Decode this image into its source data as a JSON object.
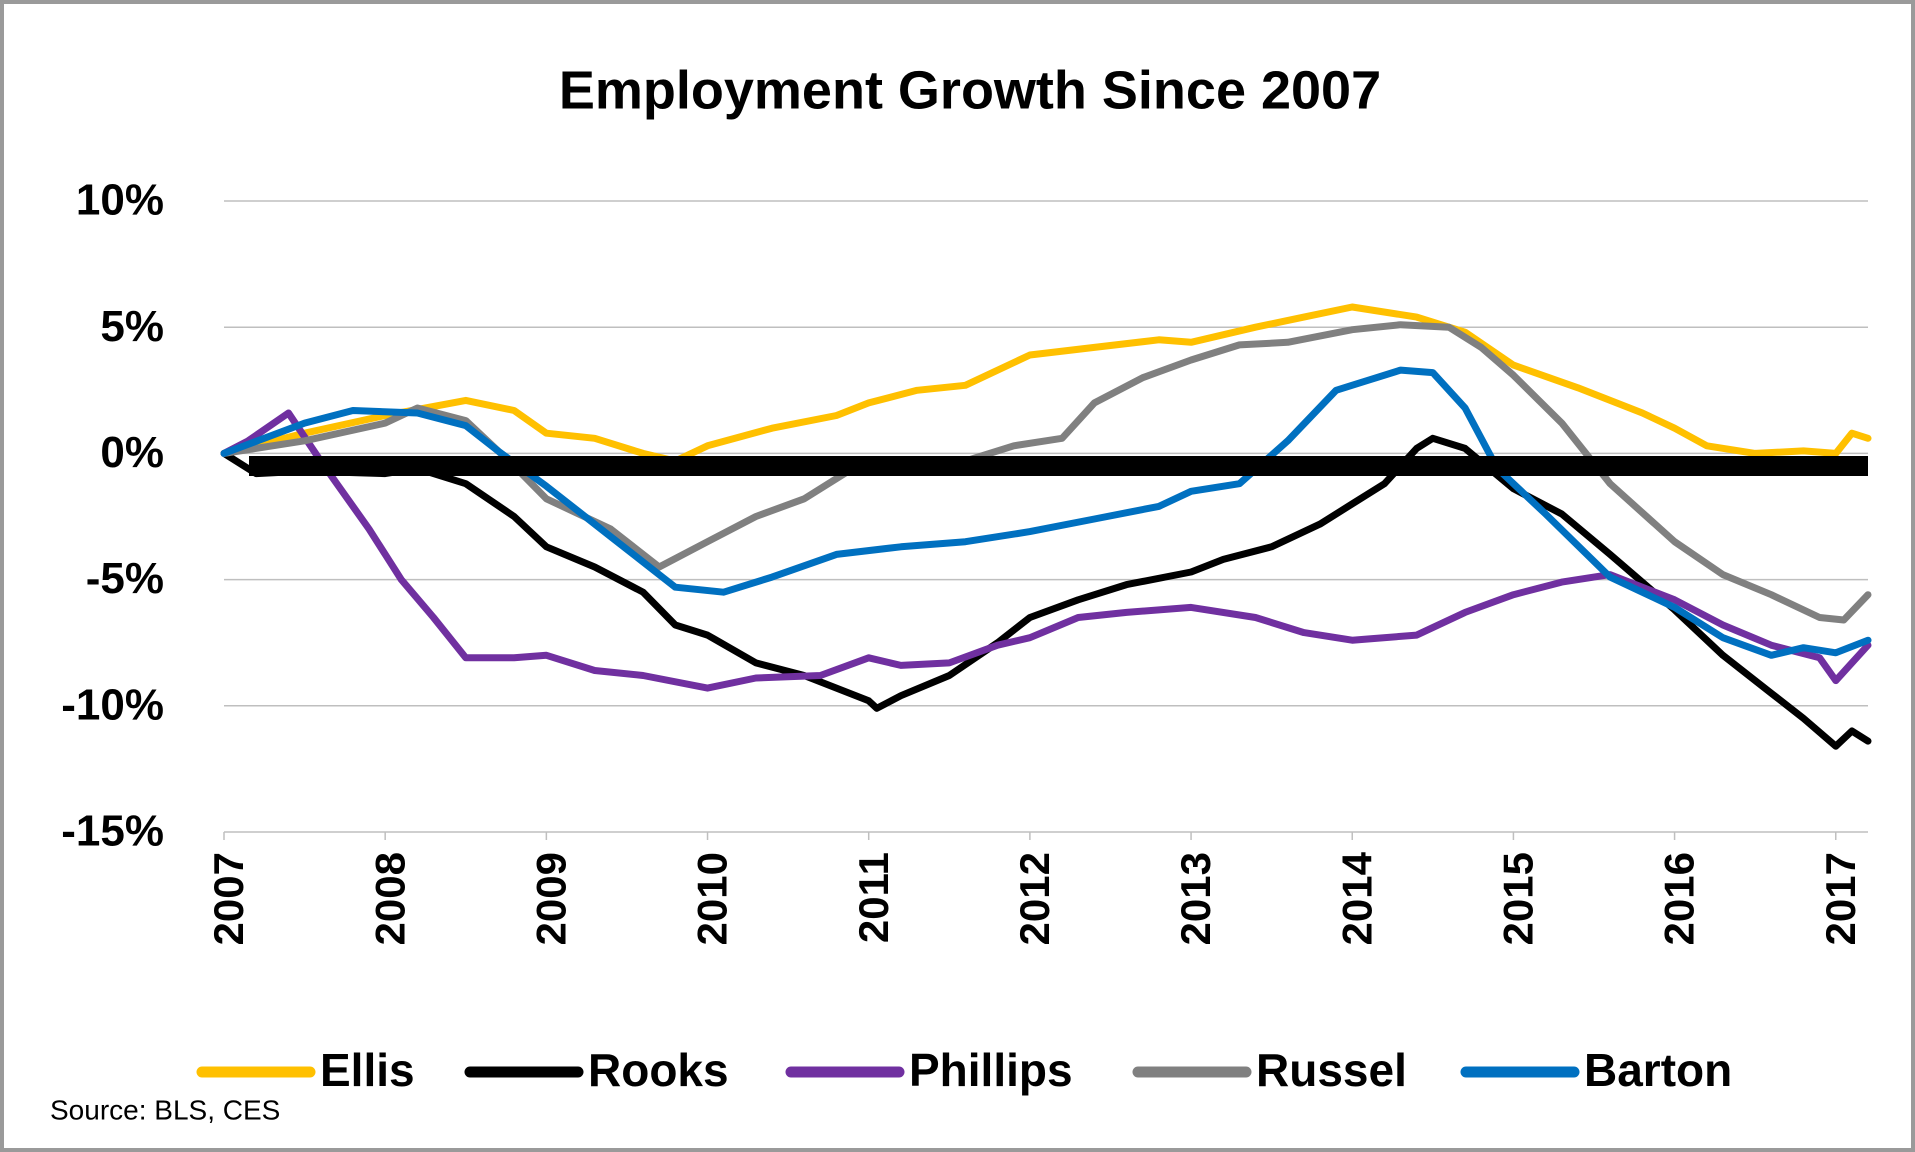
{
  "chart_data": {
    "type": "line",
    "title": "Employment Growth Since 2007",
    "source": "Source: BLS, CES",
    "xlim": [
      2007,
      2017.2
    ],
    "xticks": [
      2007,
      2008,
      2009,
      2010,
      2011,
      2012,
      2013,
      2014,
      2015,
      2016,
      2017
    ],
    "ylim": [
      -15,
      10
    ],
    "yticks": [
      {
        "value": 10,
        "label": "10%"
      },
      {
        "value": 5,
        "label": "5%"
      },
      {
        "value": 0,
        "label": "0%"
      },
      {
        "value": -5,
        "label": "-5%"
      },
      {
        "value": -10,
        "label": "-10%"
      },
      {
        "value": -15,
        "label": "-15%"
      }
    ],
    "grid": true,
    "legend": "bottom",
    "hline": {
      "value": -0.5,
      "color": "#000000"
    },
    "series": [
      {
        "name": "Ellis",
        "color": "#ffc000",
        "x": [
          2007,
          2007.5,
          2008,
          2008.5,
          2008.8,
          2009,
          2009.3,
          2009.6,
          2009.8,
          2010,
          2010.4,
          2010.8,
          2011,
          2011.3,
          2011.6,
          2012,
          2012.4,
          2012.8,
          2013,
          2013.4,
          2013.7,
          2014,
          2014.4,
          2014.7,
          2015,
          2015.4,
          2015.8,
          2016,
          2016.2,
          2016.5,
          2016.8,
          2017,
          2017.1,
          2017.2
        ],
        "values": [
          0,
          0.8,
          1.5,
          2.1,
          1.7,
          0.8,
          0.6,
          0,
          -0.3,
          0.3,
          1.0,
          1.5,
          2.0,
          2.5,
          2.7,
          3.9,
          4.2,
          4.5,
          4.4,
          5.0,
          5.4,
          5.8,
          5.4,
          4.8,
          3.5,
          2.6,
          1.6,
          1.0,
          0.3,
          0,
          0.1,
          0,
          0.8,
          0.6
        ]
      },
      {
        "name": "Rooks",
        "color": "#000000",
        "x": [
          2007,
          2007.2,
          2007.5,
          2008,
          2008.2,
          2008.5,
          2008.8,
          2009,
          2009.3,
          2009.6,
          2009.8,
          2010,
          2010.3,
          2010.6,
          2011,
          2011.05,
          2011.2,
          2011.5,
          2011.8,
          2012,
          2012.3,
          2012.6,
          2013,
          2013.2,
          2013.5,
          2013.8,
          2014,
          2014.2,
          2014.4,
          2014.5,
          2014.7,
          2015,
          2015.3,
          2015.6,
          2016,
          2016.3,
          2016.6,
          2016.8,
          2017,
          2017.1,
          2017.2
        ],
        "values": [
          0,
          -0.8,
          -0.7,
          -0.8,
          -0.6,
          -1.2,
          -2.5,
          -3.7,
          -4.5,
          -5.5,
          -6.8,
          -7.2,
          -8.3,
          -8.8,
          -9.8,
          -10.1,
          -9.6,
          -8.8,
          -7.5,
          -6.5,
          -5.8,
          -5.2,
          -4.7,
          -4.2,
          -3.7,
          -2.8,
          -2.0,
          -1.2,
          0.2,
          0.6,
          0.2,
          -1.4,
          -2.4,
          -4.0,
          -6.2,
          -8.0,
          -9.5,
          -10.5,
          -11.6,
          -11.0,
          -11.4
        ]
      },
      {
        "name": "Phillips",
        "color": "#7030a0",
        "x": [
          2007,
          2007.15,
          2007.4,
          2007.6,
          2007.9,
          2008.1,
          2008.3,
          2008.5,
          2008.8,
          2009,
          2009.3,
          2009.6,
          2010,
          2010.3,
          2010.7,
          2011,
          2011.2,
          2011.5,
          2011.8,
          2012,
          2012.3,
          2012.6,
          2013,
          2013.4,
          2013.7,
          2014,
          2014.4,
          2014.7,
          2015,
          2015.3,
          2015.6,
          2016,
          2016.3,
          2016.6,
          2016.9,
          2017,
          2017.1,
          2017.2
        ],
        "values": [
          0,
          0.5,
          1.6,
          -0.3,
          -3,
          -5,
          -6.5,
          -8.1,
          -8.1,
          -8,
          -8.6,
          -8.8,
          -9.3,
          -8.9,
          -8.8,
          -8.1,
          -8.4,
          -8.3,
          -7.6,
          -7.3,
          -6.5,
          -6.3,
          -6.1,
          -6.5,
          -7.1,
          -7.4,
          -7.2,
          -6.3,
          -5.6,
          -5.1,
          -4.8,
          -5.8,
          -6.8,
          -7.6,
          -8.1,
          -9.0,
          -8.3,
          -7.6
        ]
      },
      {
        "name": "Russel",
        "color": "#808080",
        "x": [
          2007,
          2007.5,
          2008,
          2008.2,
          2008.5,
          2008.8,
          2009,
          2009.4,
          2009.7,
          2010,
          2010.3,
          2010.6,
          2010.9,
          2011.2,
          2011.6,
          2011.9,
          2012.2,
          2012.4,
          2012.7,
          2013,
          2013.3,
          2013.6,
          2014,
          2014.3,
          2014.6,
          2014.8,
          2015,
          2015.3,
          2015.6,
          2016,
          2016.3,
          2016.6,
          2016.9,
          2017.05,
          2017.2
        ],
        "values": [
          0,
          0.5,
          1.2,
          1.8,
          1.3,
          -0.5,
          -1.8,
          -3.0,
          -4.5,
          -3.5,
          -2.5,
          -1.8,
          -0.6,
          -0.3,
          -0.3,
          0.3,
          0.6,
          2.0,
          3.0,
          3.7,
          4.3,
          4.4,
          4.9,
          5.1,
          5.0,
          4.2,
          3.1,
          1.2,
          -1.2,
          -3.5,
          -4.8,
          -5.6,
          -6.5,
          -6.6,
          -5.6
        ]
      },
      {
        "name": "Barton",
        "color": "#0070c0",
        "x": [
          2007,
          2007.5,
          2007.8,
          2008.2,
          2008.5,
          2008.7,
          2009,
          2009.4,
          2009.8,
          2010.1,
          2010.4,
          2010.8,
          2011.2,
          2011.6,
          2012,
          2012.4,
          2012.8,
          2013,
          2013.3,
          2013.6,
          2013.9,
          2014.1,
          2014.3,
          2014.5,
          2014.7,
          2014.9,
          2015.2,
          2015.6,
          2016,
          2016.3,
          2016.6,
          2016.8,
          2017,
          2017.2
        ],
        "values": [
          0,
          1.2,
          1.7,
          1.6,
          1.1,
          0.1,
          -1.3,
          -3.3,
          -5.3,
          -5.5,
          -4.9,
          -4.0,
          -3.7,
          -3.5,
          -3.1,
          -2.6,
          -2.1,
          -1.5,
          -1.2,
          0.5,
          2.5,
          2.9,
          3.3,
          3.2,
          1.8,
          -0.6,
          -2.4,
          -4.9,
          -6.1,
          -7.3,
          -8.0,
          -7.7,
          -7.9,
          -7.4
        ]
      }
    ]
  }
}
